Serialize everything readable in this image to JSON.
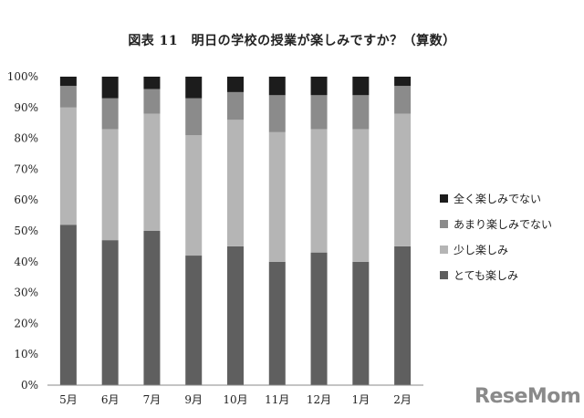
{
  "chart_data": {
    "type": "bar",
    "stacked": true,
    "title": "図表 11　明日の学校の授業が楽しみですか？（算数）",
    "categories": [
      "5月",
      "6月",
      "7月",
      "9月",
      "10月",
      "11月",
      "12月",
      "1月",
      "2月"
    ],
    "yticks": [
      "0%",
      "10%",
      "20%",
      "30%",
      "40%",
      "50%",
      "60%",
      "70%",
      "80%",
      "90%",
      "100%"
    ],
    "ylim": [
      0,
      100
    ],
    "legend_position": "right",
    "series": [
      {
        "name": "とても楽しみ",
        "color": "#5f5f5f",
        "values": [
          52,
          47,
          50,
          42,
          45,
          40,
          43,
          40,
          45
        ]
      },
      {
        "name": "少し楽しみ",
        "color": "#b5b5b5",
        "values": [
          38,
          36,
          38,
          39,
          41,
          42,
          40,
          43,
          43
        ]
      },
      {
        "name": "あまり楽しみでない",
        "color": "#8b8b8b",
        "values": [
          7,
          10,
          8,
          12,
          9,
          12,
          11,
          11,
          9
        ]
      },
      {
        "name": "全く楽しみでない",
        "color": "#1c1c1c",
        "values": [
          3,
          7,
          4,
          7,
          5,
          6,
          6,
          6,
          3
        ]
      }
    ]
  },
  "watermark": "ReseMom"
}
